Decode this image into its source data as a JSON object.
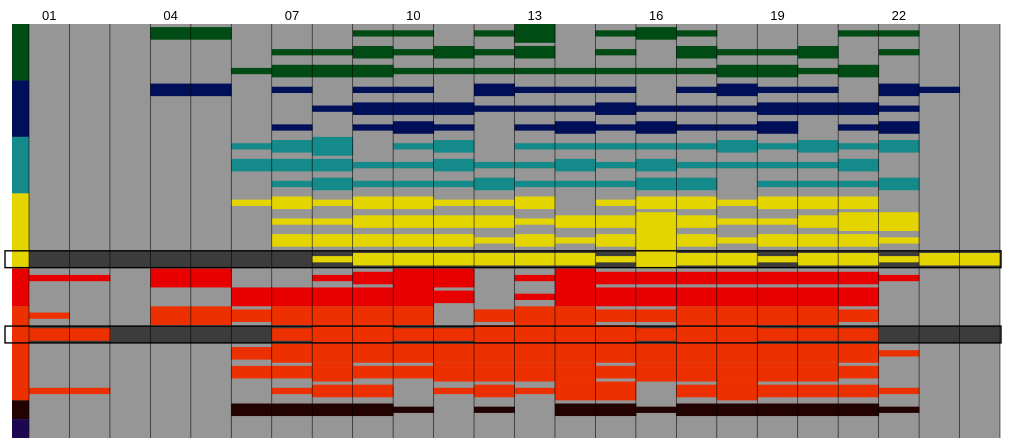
{
  "chart_data": {
    "type": "heatmap",
    "background_color": "#969696",
    "highlight_row_color": "#3c3c3c",
    "x_tick_labels": [
      "01",
      "04",
      "07",
      "10",
      "13",
      "16",
      "19",
      "22"
    ],
    "x_tick_columns": [
      1,
      4,
      7,
      10,
      13,
      16,
      19,
      22
    ],
    "n_columns": 24,
    "groups": [
      {
        "color": "#004c14",
        "rows": 3
      },
      {
        "color": "#000f59",
        "rows": 3
      },
      {
        "color": "#158a8a",
        "rows": 3
      },
      {
        "color": "#e4d400",
        "rows": 4
      },
      {
        "color": "#e80000",
        "rows": 2
      },
      {
        "color": "#ec3000",
        "rows": 5
      },
      {
        "color": "#230202",
        "rows": 1
      },
      {
        "color": "#1d0750",
        "rows": 1
      }
    ],
    "highlighted_rows": [
      12,
      16
    ],
    "cells": [
      [
        [
          4,
          2
        ],
        [
          5,
          2
        ],
        [
          9,
          1
        ],
        [
          10,
          1
        ],
        [
          12,
          1
        ],
        [
          13,
          3
        ],
        [
          15,
          1
        ],
        [
          16,
          0
        ],
        [
          16,
          1
        ],
        [
          16,
          2
        ],
        [
          17,
          1
        ],
        [
          18,
          0
        ],
        [
          20,
          0
        ],
        [
          21,
          1
        ],
        [
          22,
          1
        ]
      ],
      [
        [
          7,
          1
        ],
        [
          8,
          1
        ],
        [
          9,
          2
        ],
        [
          10,
          1
        ],
        [
          11,
          2
        ],
        [
          12,
          1
        ],
        [
          13,
          2
        ],
        [
          15,
          1
        ],
        [
          16,
          0
        ],
        [
          17,
          2
        ],
        [
          18,
          1
        ],
        [
          19,
          1
        ],
        [
          20,
          2
        ],
        [
          21,
          0
        ],
        [
          22,
          1
        ]
      ],
      [
        [
          6,
          1
        ],
        [
          7,
          2
        ],
        [
          8,
          2
        ],
        [
          9,
          2
        ],
        [
          10,
          1
        ],
        [
          11,
          1
        ],
        [
          12,
          1
        ],
        [
          13,
          1
        ],
        [
          14,
          1
        ],
        [
          15,
          1
        ],
        [
          16,
          1
        ],
        [
          17,
          1
        ],
        [
          18,
          2
        ],
        [
          19,
          2
        ],
        [
          20,
          1
        ],
        [
          21,
          2
        ]
      ],
      [
        [
          4,
          2
        ],
        [
          5,
          2
        ],
        [
          7,
          1
        ],
        [
          9,
          1
        ],
        [
          10,
          1
        ],
        [
          12,
          2
        ],
        [
          13,
          1
        ],
        [
          14,
          1
        ],
        [
          15,
          1
        ],
        [
          17,
          1
        ],
        [
          18,
          2
        ],
        [
          19,
          1
        ],
        [
          20,
          1
        ],
        [
          22,
          2
        ],
        [
          23,
          1
        ]
      ],
      [
        [
          8,
          1
        ],
        [
          9,
          2
        ],
        [
          10,
          2
        ],
        [
          11,
          2
        ],
        [
          12,
          1
        ],
        [
          13,
          1
        ],
        [
          14,
          1
        ],
        [
          15,
          2
        ],
        [
          16,
          1
        ],
        [
          17,
          1
        ],
        [
          18,
          1
        ],
        [
          19,
          2
        ],
        [
          20,
          2
        ],
        [
          21,
          2
        ],
        [
          22,
          1
        ]
      ],
      [
        [
          7,
          1
        ],
        [
          9,
          1
        ],
        [
          10,
          2
        ],
        [
          11,
          1
        ],
        [
          13,
          1
        ],
        [
          14,
          2
        ],
        [
          15,
          1
        ],
        [
          16,
          2
        ],
        [
          17,
          1
        ],
        [
          18,
          1
        ],
        [
          19,
          2
        ],
        [
          21,
          1
        ],
        [
          22,
          2
        ]
      ],
      [
        [
          6,
          1
        ],
        [
          7,
          2
        ],
        [
          8,
          3
        ],
        [
          10,
          1
        ],
        [
          11,
          2
        ],
        [
          13,
          1
        ],
        [
          14,
          1
        ],
        [
          15,
          1
        ],
        [
          16,
          1
        ],
        [
          17,
          1
        ],
        [
          18,
          2
        ],
        [
          19,
          1
        ],
        [
          20,
          2
        ],
        [
          21,
          1
        ],
        [
          22,
          2
        ]
      ],
      [
        [
          6,
          2
        ],
        [
          7,
          2
        ],
        [
          8,
          2
        ],
        [
          9,
          1
        ],
        [
          10,
          1
        ],
        [
          11,
          2
        ],
        [
          12,
          1
        ],
        [
          13,
          1
        ],
        [
          14,
          2
        ],
        [
          15,
          1
        ],
        [
          16,
          2
        ],
        [
          17,
          1
        ],
        [
          18,
          1
        ],
        [
          19,
          1
        ],
        [
          20,
          1
        ],
        [
          21,
          2
        ]
      ],
      [
        [
          7,
          1
        ],
        [
          8,
          2
        ],
        [
          9,
          1
        ],
        [
          10,
          1
        ],
        [
          11,
          1
        ],
        [
          12,
          2
        ],
        [
          13,
          1
        ],
        [
          14,
          1
        ],
        [
          15,
          1
        ],
        [
          16,
          2
        ],
        [
          17,
          2
        ],
        [
          19,
          1
        ],
        [
          20,
          1
        ],
        [
          21,
          1
        ],
        [
          22,
          2
        ]
      ],
      [
        [
          6,
          1
        ],
        [
          7,
          2
        ],
        [
          8,
          1
        ],
        [
          9,
          2
        ],
        [
          10,
          2
        ],
        [
          11,
          1
        ],
        [
          12,
          1
        ],
        [
          13,
          2
        ],
        [
          15,
          1
        ],
        [
          16,
          2
        ],
        [
          17,
          2
        ],
        [
          18,
          1
        ],
        [
          19,
          2
        ],
        [
          20,
          2
        ],
        [
          21,
          2
        ]
      ],
      [
        [
          7,
          1
        ],
        [
          8,
          1
        ],
        [
          9,
          2
        ],
        [
          10,
          2
        ],
        [
          11,
          2
        ],
        [
          12,
          2
        ],
        [
          13,
          1
        ],
        [
          14,
          2
        ],
        [
          15,
          2
        ],
        [
          16,
          3
        ],
        [
          17,
          2
        ],
        [
          18,
          1
        ],
        [
          19,
          1
        ],
        [
          20,
          2
        ],
        [
          21,
          3
        ],
        [
          22,
          3
        ]
      ],
      [
        [
          7,
          2
        ],
        [
          8,
          2
        ],
        [
          9,
          2
        ],
        [
          10,
          2
        ],
        [
          11,
          2
        ],
        [
          12,
          1
        ],
        [
          13,
          2
        ],
        [
          14,
          1
        ],
        [
          15,
          2
        ],
        [
          16,
          3
        ],
        [
          17,
          2
        ],
        [
          18,
          1
        ],
        [
          19,
          2
        ],
        [
          20,
          2
        ],
        [
          21,
          2
        ],
        [
          22,
          1
        ]
      ],
      [
        [
          8,
          1
        ],
        [
          9,
          2
        ],
        [
          10,
          2
        ],
        [
          11,
          2
        ],
        [
          12,
          2
        ],
        [
          13,
          2
        ],
        [
          14,
          2
        ],
        [
          15,
          1
        ],
        [
          16,
          3
        ],
        [
          17,
          2
        ],
        [
          18,
          2
        ],
        [
          19,
          1
        ],
        [
          20,
          2
        ],
        [
          21,
          2
        ],
        [
          22,
          1
        ],
        [
          23,
          2
        ],
        [
          24,
          2
        ]
      ],
      [
        [
          1,
          1
        ],
        [
          2,
          1
        ],
        [
          4,
          3
        ],
        [
          5,
          3
        ],
        [
          8,
          1
        ],
        [
          9,
          2
        ],
        [
          10,
          3
        ],
        [
          11,
          3
        ],
        [
          13,
          1
        ],
        [
          14,
          3
        ],
        [
          15,
          2
        ],
        [
          16,
          2
        ],
        [
          17,
          2
        ],
        [
          18,
          2
        ],
        [
          19,
          2
        ],
        [
          20,
          2
        ],
        [
          21,
          2
        ],
        [
          22,
          1
        ]
      ],
      [
        [
          6,
          3
        ],
        [
          7,
          3
        ],
        [
          8,
          3
        ],
        [
          9,
          3
        ],
        [
          10,
          3
        ],
        [
          11,
          2
        ],
        [
          13,
          1
        ],
        [
          14,
          3
        ],
        [
          15,
          3
        ],
        [
          16,
          3
        ],
        [
          17,
          3
        ],
        [
          18,
          3
        ],
        [
          19,
          3
        ],
        [
          20,
          3
        ],
        [
          21,
          3
        ]
      ],
      [
        [
          1,
          1
        ],
        [
          4,
          3
        ],
        [
          5,
          3
        ],
        [
          6,
          2
        ],
        [
          7,
          3
        ],
        [
          8,
          3
        ],
        [
          9,
          3
        ],
        [
          10,
          3
        ],
        [
          12,
          2
        ],
        [
          13,
          3
        ],
        [
          14,
          3
        ],
        [
          15,
          2
        ],
        [
          16,
          2
        ],
        [
          17,
          3
        ],
        [
          18,
          3
        ],
        [
          19,
          3
        ],
        [
          20,
          3
        ],
        [
          21,
          2
        ]
      ],
      [
        [
          1,
          2
        ],
        [
          2,
          2
        ],
        [
          7,
          2
        ],
        [
          8,
          3
        ],
        [
          9,
          3
        ],
        [
          10,
          2
        ],
        [
          11,
          2
        ],
        [
          12,
          3
        ],
        [
          13,
          3
        ],
        [
          14,
          3
        ],
        [
          15,
          3
        ],
        [
          16,
          2
        ],
        [
          17,
          3
        ],
        [
          18,
          3
        ],
        [
          19,
          2
        ],
        [
          20,
          2
        ],
        [
          21,
          2
        ]
      ],
      [
        [
          6,
          2
        ],
        [
          7,
          3
        ],
        [
          8,
          3
        ],
        [
          9,
          3
        ],
        [
          10,
          3
        ],
        [
          11,
          3
        ],
        [
          12,
          3
        ],
        [
          13,
          3
        ],
        [
          14,
          3
        ],
        [
          15,
          3
        ],
        [
          16,
          3
        ],
        [
          17,
          3
        ],
        [
          18,
          3
        ],
        [
          19,
          3
        ],
        [
          20,
          3
        ],
        [
          21,
          3
        ],
        [
          22,
          1
        ]
      ],
      [
        [
          6,
          2
        ],
        [
          7,
          2
        ],
        [
          8,
          3
        ],
        [
          9,
          2
        ],
        [
          10,
          2
        ],
        [
          11,
          3
        ],
        [
          12,
          3
        ],
        [
          13,
          3
        ],
        [
          14,
          3
        ],
        [
          15,
          2
        ],
        [
          16,
          3
        ],
        [
          17,
          3
        ],
        [
          18,
          3
        ],
        [
          19,
          3
        ],
        [
          20,
          3
        ],
        [
          21,
          2
        ]
      ],
      [
        [
          1,
          1
        ],
        [
          2,
          1
        ],
        [
          7,
          1
        ],
        [
          8,
          2
        ],
        [
          9,
          2
        ],
        [
          11,
          1
        ],
        [
          12,
          2
        ],
        [
          13,
          1
        ],
        [
          14,
          3
        ],
        [
          15,
          3
        ],
        [
          17,
          2
        ],
        [
          18,
          3
        ],
        [
          19,
          2
        ],
        [
          20,
          2
        ],
        [
          21,
          2
        ],
        [
          22,
          1
        ]
      ],
      [
        [
          6,
          2
        ],
        [
          7,
          2
        ],
        [
          8,
          2
        ],
        [
          9,
          2
        ],
        [
          10,
          1
        ],
        [
          12,
          1
        ],
        [
          14,
          2
        ],
        [
          15,
          2
        ],
        [
          16,
          1
        ],
        [
          17,
          2
        ],
        [
          18,
          2
        ],
        [
          19,
          2
        ],
        [
          20,
          2
        ],
        [
          21,
          2
        ],
        [
          22,
          1
        ]
      ]
    ]
  }
}
